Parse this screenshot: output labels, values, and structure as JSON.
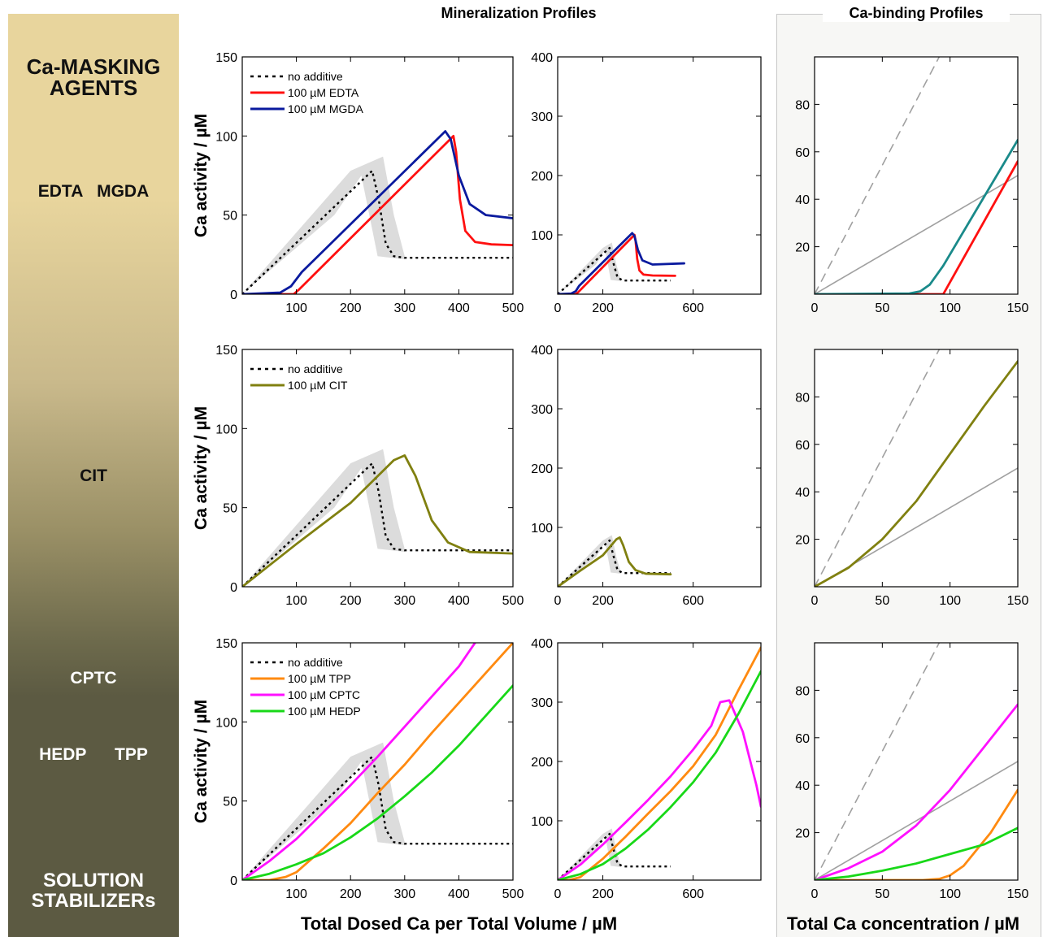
{
  "sidebar": {
    "top_title_line1": "Ca-MASKING",
    "top_title_line2": "AGENTS",
    "row1_label": "EDTA   MGDA",
    "row2_label": "CIT",
    "row3_label_a": "CPTC",
    "row3_label_b": "HEDP      TPP",
    "bottom_title_line1": "SOLUTION",
    "bottom_title_line2": "STABILIZERs"
  },
  "headings": {
    "mineralization": "Mineralization Profiles",
    "binding": "Ca-binding Profiles"
  },
  "axis_labels": {
    "y_activity": "Ca activity / µM",
    "x_dosed": "Total Dosed Ca  per Total Volume / µM",
    "x_total": "Total Ca concentration / µM"
  },
  "colors": {
    "no_additive": "#000000",
    "EDTA": "#ff1010",
    "MGDA": "#0a1a9e",
    "CIT": "#808010",
    "TPP": "#ff8a10",
    "CPTC": "#ff10ff",
    "HEDP": "#18d818",
    "binding_MGDA": "#1a8a8a",
    "reference_gray": "#a0a0a0",
    "band_gray": "#dcdcdc"
  },
  "chart_data": [
    {
      "id": "row1-left",
      "type": "line",
      "xlim": [
        0,
        500
      ],
      "ylim": [
        0,
        150
      ],
      "xticks": [
        100,
        200,
        300,
        400,
        500
      ],
      "yticks": [
        0,
        50,
        100,
        150
      ],
      "legend": [
        "no additive",
        "100 µM EDTA",
        "100 µM MGDA"
      ],
      "series": [
        {
          "name": "no additive",
          "style": "dotted",
          "color": "#000000",
          "x": [
            0,
            240,
            252,
            265,
            280,
            300,
            500
          ],
          "y": [
            0,
            78,
            60,
            32,
            24,
            23,
            23
          ]
        },
        {
          "name": "100 µM EDTA",
          "color": "#ff1010",
          "x": [
            0,
            95,
            105,
            390,
            395,
            402,
            412,
            430,
            460,
            500
          ],
          "y": [
            0,
            0,
            3,
            100,
            90,
            60,
            40,
            33,
            31.5,
            31
          ]
        },
        {
          "name": "100 µM MGDA",
          "color": "#0a1a9e",
          "x": [
            0,
            70,
            90,
            110,
            375,
            385,
            400,
            420,
            450,
            500
          ],
          "y": [
            0,
            1,
            5,
            14,
            103,
            98,
            75,
            57,
            50,
            48
          ]
        }
      ],
      "band": {
        "upper_x": [
          0,
          200,
          260,
          280,
          300
        ],
        "upper_y": [
          0,
          78,
          87,
          50,
          24
        ],
        "lower_x": [
          0,
          170,
          220,
          250,
          300
        ],
        "lower_y": [
          0,
          50,
          75,
          24,
          22
        ]
      }
    },
    {
      "id": "row1-mid",
      "type": "line",
      "xlim": [
        0,
        900
      ],
      "ylim": [
        0,
        400
      ],
      "xticks": [
        0,
        200,
        600
      ],
      "yticks": [
        100,
        200,
        300,
        400
      ],
      "series": [
        {
          "name": "no additive",
          "style": "dotted",
          "color": "#000000",
          "x": [
            0,
            230,
            245,
            265,
            290,
            500
          ],
          "y": [
            0,
            78,
            55,
            28,
            23,
            23
          ]
        },
        {
          "name": "100 µM EDTA",
          "color": "#ff1010",
          "x": [
            0,
            80,
            90,
            340,
            345,
            352,
            362,
            380,
            420,
            520
          ],
          "y": [
            0,
            0,
            3,
            100,
            90,
            60,
            40,
            33,
            31.5,
            31
          ]
        },
        {
          "name": "100 µM MGDA",
          "color": "#0a1a9e",
          "x": [
            0,
            60,
            80,
            95,
            330,
            340,
            355,
            375,
            420,
            560
          ],
          "y": [
            0,
            1,
            5,
            14,
            103,
            98,
            75,
            57,
            50,
            52
          ]
        }
      ],
      "band": {
        "upper_x": [
          0,
          200,
          240,
          260,
          280
        ],
        "upper_y": [
          0,
          78,
          87,
          50,
          24
        ],
        "lower_x": [
          0,
          170,
          210,
          235,
          280
        ],
        "lower_y": [
          0,
          50,
          75,
          24,
          22
        ]
      }
    },
    {
      "id": "row1-right",
      "type": "line",
      "xlim": [
        0,
        150
      ],
      "ylim": [
        0,
        100
      ],
      "xticks": [
        0,
        50,
        100,
        150
      ],
      "yticks": [
        20,
        40,
        60,
        80
      ],
      "series": [
        {
          "name": "reference-dashed",
          "style": "dashed",
          "color": "#a0a0a0",
          "x": [
            0,
            92
          ],
          "y": [
            0,
            100
          ]
        },
        {
          "name": "reference-solid",
          "color": "#a0a0a0",
          "x": [
            0,
            150
          ],
          "y": [
            0,
            50
          ]
        },
        {
          "name": "EDTA",
          "color": "#ff1010",
          "x": [
            0,
            95,
            150
          ],
          "y": [
            0,
            0,
            56
          ]
        },
        {
          "name": "MGDA",
          "color": "#1a8a8a",
          "x": [
            0,
            70,
            78,
            85,
            95,
            150
          ],
          "y": [
            0,
            0.3,
            1.2,
            4,
            12,
            65
          ]
        }
      ]
    },
    {
      "id": "row2-left",
      "type": "line",
      "xlim": [
        0,
        500
      ],
      "ylim": [
        0,
        150
      ],
      "xticks": [
        100,
        200,
        300,
        400,
        500
      ],
      "yticks": [
        0,
        50,
        100,
        150
      ],
      "legend": [
        "no additive",
        "100 µM CIT"
      ],
      "series": [
        {
          "name": "no additive",
          "style": "dotted",
          "color": "#000000",
          "x": [
            0,
            240,
            252,
            265,
            280,
            300,
            500
          ],
          "y": [
            0,
            78,
            60,
            32,
            24,
            23,
            23
          ]
        },
        {
          "name": "100 µM CIT",
          "color": "#808010",
          "x": [
            0,
            100,
            200,
            280,
            300,
            320,
            350,
            380,
            420,
            500
          ],
          "y": [
            0,
            27,
            53,
            80,
            83,
            70,
            42,
            28,
            22,
            21
          ]
        }
      ],
      "band": {
        "upper_x": [
          0,
          200,
          260,
          280,
          300
        ],
        "upper_y": [
          0,
          78,
          87,
          50,
          24
        ],
        "lower_x": [
          0,
          170,
          220,
          250,
          300
        ],
        "lower_y": [
          0,
          50,
          75,
          24,
          22
        ]
      }
    },
    {
      "id": "row2-mid",
      "type": "line",
      "xlim": [
        0,
        900
      ],
      "ylim": [
        0,
        400
      ],
      "xticks": [
        0,
        200,
        600
      ],
      "yticks": [
        100,
        200,
        300,
        400
      ],
      "series": [
        {
          "name": "no additive",
          "style": "dotted",
          "color": "#000000",
          "x": [
            0,
            230,
            245,
            265,
            290,
            500
          ],
          "y": [
            0,
            78,
            55,
            28,
            23,
            23
          ]
        },
        {
          "name": "100 µM CIT",
          "color": "#808010",
          "x": [
            0,
            100,
            200,
            260,
            275,
            290,
            315,
            345,
            390,
            500
          ],
          "y": [
            0,
            27,
            53,
            80,
            83,
            70,
            42,
            28,
            22,
            21
          ]
        }
      ],
      "band": {
        "upper_x": [
          0,
          200,
          240,
          260,
          280
        ],
        "upper_y": [
          0,
          78,
          87,
          50,
          24
        ],
        "lower_x": [
          0,
          170,
          210,
          235,
          280
        ],
        "lower_y": [
          0,
          50,
          75,
          24,
          22
        ]
      }
    },
    {
      "id": "row2-right",
      "type": "line",
      "xlim": [
        0,
        150
      ],
      "ylim": [
        0,
        100
      ],
      "xticks": [
        0,
        50,
        100,
        150
      ],
      "yticks": [
        20,
        40,
        60,
        80
      ],
      "series": [
        {
          "name": "reference-dashed",
          "style": "dashed",
          "color": "#a0a0a0",
          "x": [
            0,
            92
          ],
          "y": [
            0,
            100
          ]
        },
        {
          "name": "reference-solid",
          "color": "#a0a0a0",
          "x": [
            0,
            150
          ],
          "y": [
            0,
            50
          ]
        },
        {
          "name": "CIT",
          "color": "#808010",
          "x": [
            0,
            25,
            50,
            75,
            100,
            125,
            150
          ],
          "y": [
            0,
            8,
            20,
            36,
            56,
            76,
            95
          ]
        }
      ]
    },
    {
      "id": "row3-left",
      "type": "line",
      "xlim": [
        0,
        500
      ],
      "ylim": [
        0,
        150
      ],
      "xticks": [
        100,
        200,
        300,
        400,
        500
      ],
      "yticks": [
        0,
        50,
        100,
        150
      ],
      "legend": [
        "no additive",
        "100 µM TPP",
        "100 µM CPTC",
        "100 µM HEDP"
      ],
      "series": [
        {
          "name": "no additive",
          "style": "dotted",
          "color": "#000000",
          "x": [
            0,
            240,
            252,
            265,
            280,
            300,
            500
          ],
          "y": [
            0,
            78,
            60,
            32,
            24,
            23,
            23
          ]
        },
        {
          "name": "100 µM TPP",
          "color": "#ff8a10",
          "x": [
            0,
            50,
            80,
            100,
            150,
            200,
            250,
            300,
            350,
            400,
            450,
            500
          ],
          "y": [
            0,
            0,
            2,
            5,
            20,
            36,
            55,
            73,
            93,
            112,
            131,
            150
          ]
        },
        {
          "name": "100 µM CPTC",
          "color": "#ff10ff",
          "x": [
            0,
            50,
            100,
            150,
            200,
            250,
            300,
            350,
            400,
            430
          ],
          "y": [
            0,
            12,
            26,
            43,
            60,
            78,
            97,
            116,
            135,
            150
          ]
        },
        {
          "name": "100 µM HEDP",
          "color": "#18d818",
          "x": [
            0,
            50,
            100,
            150,
            200,
            250,
            300,
            350,
            400,
            450,
            500
          ],
          "y": [
            0,
            4,
            10,
            17,
            27,
            39,
            53,
            68,
            85,
            104,
            123
          ]
        }
      ],
      "band": {
        "upper_x": [
          0,
          200,
          260,
          280,
          300
        ],
        "upper_y": [
          0,
          78,
          87,
          50,
          24
        ],
        "lower_x": [
          0,
          170,
          220,
          250,
          300
        ],
        "lower_y": [
          0,
          50,
          75,
          24,
          22
        ]
      }
    },
    {
      "id": "row3-mid",
      "type": "line",
      "xlim": [
        0,
        900
      ],
      "ylim": [
        0,
        400
      ],
      "xticks": [
        0,
        200,
        600
      ],
      "yticks": [
        100,
        200,
        300,
        400
      ],
      "series": [
        {
          "name": "no additive",
          "style": "dotted",
          "color": "#000000",
          "x": [
            0,
            230,
            245,
            265,
            290,
            500
          ],
          "y": [
            0,
            78,
            55,
            28,
            23,
            23
          ]
        },
        {
          "name": "100 µM TPP",
          "color": "#ff8a10",
          "x": [
            0,
            50,
            100,
            200,
            300,
            400,
            500,
            600,
            700,
            800,
            900
          ],
          "y": [
            0,
            0,
            5,
            36,
            73,
            112,
            150,
            192,
            245,
            320,
            392
          ]
        },
        {
          "name": "100 µM CPTC",
          "color": "#ff10ff",
          "x": [
            0,
            100,
            200,
            300,
            400,
            500,
            600,
            680,
            700,
            720,
            760,
            820,
            880,
            900
          ],
          "y": [
            0,
            26,
            60,
            97,
            135,
            175,
            220,
            260,
            280,
            300,
            303,
            250,
            160,
            124
          ]
        },
        {
          "name": "100 µM HEDP",
          "color": "#18d818",
          "x": [
            0,
            100,
            200,
            300,
            400,
            500,
            600,
            700,
            800,
            900
          ],
          "y": [
            0,
            10,
            27,
            53,
            85,
            123,
            165,
            215,
            280,
            352
          ]
        }
      ],
      "band": {
        "upper_x": [
          0,
          200,
          240,
          260,
          280
        ],
        "upper_y": [
          0,
          78,
          87,
          50,
          24
        ],
        "lower_x": [
          0,
          170,
          210,
          235,
          280
        ],
        "lower_y": [
          0,
          50,
          75,
          24,
          22
        ]
      }
    },
    {
      "id": "row3-right",
      "type": "line",
      "xlim": [
        0,
        150
      ],
      "ylim": [
        0,
        100
      ],
      "xticks": [
        0,
        50,
        100,
        150
      ],
      "yticks": [
        20,
        40,
        60,
        80
      ],
      "series": [
        {
          "name": "reference-dashed",
          "style": "dashed",
          "color": "#a0a0a0",
          "x": [
            0,
            92
          ],
          "y": [
            0,
            100
          ]
        },
        {
          "name": "reference-solid",
          "color": "#a0a0a0",
          "x": [
            0,
            150
          ],
          "y": [
            0,
            50
          ]
        },
        {
          "name": "CPTC",
          "color": "#ff10ff",
          "x": [
            0,
            25,
            50,
            75,
            100,
            125,
            150
          ],
          "y": [
            0,
            5,
            12,
            23,
            38,
            56,
            74
          ]
        },
        {
          "name": "TPP",
          "color": "#ff8a10",
          "x": [
            0,
            80,
            92,
            100,
            110,
            120,
            130,
            140,
            150
          ],
          "y": [
            0,
            0,
            0.5,
            2,
            6,
            13,
            20,
            29,
            38
          ]
        },
        {
          "name": "HEDP",
          "color": "#18d818",
          "x": [
            0,
            25,
            50,
            75,
            100,
            125,
            150
          ],
          "y": [
            0,
            1.5,
            4,
            7,
            11,
            15,
            22
          ]
        }
      ]
    }
  ]
}
